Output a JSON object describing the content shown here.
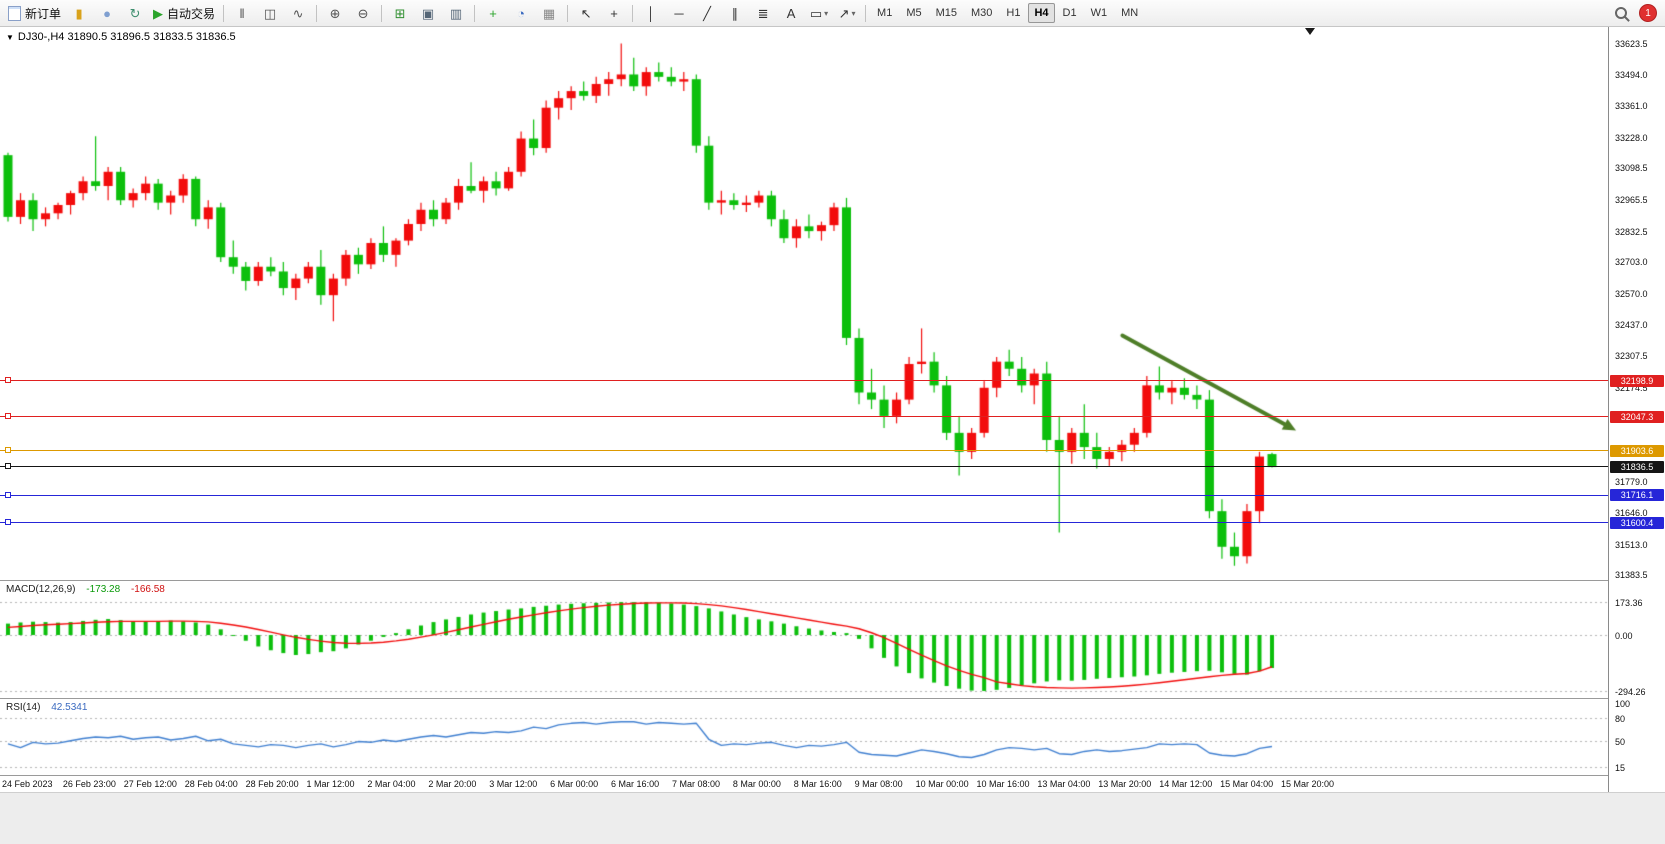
{
  "toolbar": {
    "new_order_label": "新订单",
    "algo_trading_label": "自动交易",
    "timeframes": [
      "M1",
      "M5",
      "M15",
      "M30",
      "H1",
      "H4",
      "D1",
      "W1",
      "MN"
    ],
    "active_timeframe": "H4",
    "notification_count": "1",
    "groups": [
      [
        {
          "name": "new-order-button",
          "css": "ic-doc",
          "label": "新订单"
        },
        {
          "name": "new-chart-icon",
          "glyph": "▮",
          "color": "#d9a21b"
        },
        {
          "name": "profiles-icon",
          "glyph": "●",
          "color": "#7f9fd0"
        },
        {
          "name": "refresh-icon",
          "glyph": "↻",
          "color": "#3f8f6f"
        },
        {
          "name": "algo-trading-button",
          "glyph": "▶",
          "color": "#2aa42a",
          "label": "自动交易"
        }
      ],
      [
        {
          "name": "bar-chart-icon",
          "glyph": "‖",
          "color": "#555555"
        },
        {
          "name": "candlestick-chart-icon",
          "glyph": "◫",
          "color": "#555555"
        },
        {
          "name": "line-chart-icon",
          "glyph": "∿",
          "color": "#555555"
        }
      ],
      [
        {
          "name": "zoom-in-icon",
          "glyph": "⊕",
          "color": "#555555"
        },
        {
          "name": "zoom-out-icon",
          "glyph": "⊖",
          "color": "#555555"
        }
      ],
      [
        {
          "name": "tile-windows-icon",
          "glyph": "⊞",
          "color": "#2f8f2f"
        },
        {
          "name": "new-window-icon",
          "glyph": "▣",
          "color": "#556677"
        },
        {
          "name": "window-list-icon",
          "glyph": "▥",
          "color": "#556677"
        }
      ],
      [
        {
          "name": "add-indicator-button",
          "glyph": "+",
          "color": "#2aa42a"
        },
        {
          "name": "periods-icon",
          "glyph": "◔",
          "color": "#3a6ac0"
        },
        {
          "name": "template-icon",
          "glyph": "▦",
          "color": "#888888"
        }
      ],
      [
        {
          "name": "cursor-icon",
          "glyph": "↖",
          "color": "#333333"
        },
        {
          "name": "crosshair-icon",
          "glyph": "+",
          "color": "#333333"
        }
      ],
      [
        {
          "name": "vertical-line-icon",
          "glyph": "│",
          "color": "#333333"
        },
        {
          "name": "horizontal-line-icon",
          "glyph": "─",
          "color": "#333333"
        },
        {
          "name": "trendline-icon",
          "glyph": "╱",
          "color": "#333333"
        },
        {
          "name": "channel-icon",
          "glyph": "∥",
          "color": "#333333"
        },
        {
          "name": "fibonacci-icon",
          "glyph": "≣",
          "color": "#333333"
        },
        {
          "name": "text-icon",
          "glyph": "A",
          "color": "#333333"
        },
        {
          "name": "shapes-icon",
          "glyph": "▭",
          "color": "#333333",
          "caret": true
        },
        {
          "name": "arrows-icon",
          "glyph": "↗",
          "color": "#333333",
          "caret": true
        }
      ]
    ]
  },
  "chart": {
    "title": "DJ30-,H4 31890.5 31896.5 31833.5 31836.5"
  },
  "indicators": {
    "macd_title": "MACD(12,26,9)",
    "macd_main": "-173.28",
    "macd_signal": "-166.58",
    "rsi_title": "RSI(14)",
    "rsi_value": "42.5341"
  },
  "chart_data": {
    "type": "candlestick",
    "symbol": "DJ30-",
    "timeframe": "H4",
    "ohlc": {
      "open": 31890.5,
      "high": 31896.5,
      "low": 31833.5,
      "close": 31836.5
    },
    "price_range": [
      31360,
      33690
    ],
    "colors": {
      "bull": "#f20c0c",
      "bear": "#0cbf0c"
    },
    "price_axis_labels": [
      "33623.5",
      "33494.0",
      "33361.0",
      "33228.0",
      "33098.5",
      "32965.5",
      "32832.5",
      "32703.0",
      "32570.0",
      "32437.0",
      "32307.5",
      "32174.5",
      "31779.0",
      "31646.0",
      "31513.0",
      "31383.5"
    ],
    "hlines": [
      {
        "price": 32198.9,
        "label": "32198.9",
        "color": "#e02020",
        "name": "resistance-line-1"
      },
      {
        "price": 32047.3,
        "label": "32047.3",
        "color": "#e02020",
        "name": "resistance-line-2"
      },
      {
        "price": 31903.6,
        "label": "31903.6",
        "color": "#dd9900",
        "name": "pivot-line"
      },
      {
        "price": 31716.1,
        "label": "31716.1",
        "color": "#2626d8",
        "name": "support-line-1"
      },
      {
        "price": 31600.4,
        "label": "31600.4",
        "color": "#2626d8",
        "name": "support-line-2"
      }
    ],
    "bid_line": {
      "price": 31836.5,
      "label": "31836.5",
      "color": "#151515"
    },
    "trend_arrow": {
      "x1_frac": 0.698,
      "price1": 32390,
      "x2_frac": 0.806,
      "price2": 31990,
      "color": "#4e7e28"
    },
    "time_labels": [
      "24 Feb 2023",
      "26 Feb 23:00",
      "27 Feb 12:00",
      "28 Feb 04:00",
      "28 Feb 20:00",
      "1 Mar 12:00",
      "2 Mar 04:00",
      "2 Mar 20:00",
      "3 Mar 12:00",
      "6 Mar 00:00",
      "6 Mar 16:00",
      "7 Mar 08:00",
      "8 Mar 00:00",
      "8 Mar 16:00",
      "9 Mar 08:00",
      "10 Mar 00:00",
      "10 Mar 16:00",
      "13 Mar 04:00",
      "13 Mar 20:00",
      "14 Mar 12:00",
      "15 Mar 04:00",
      "15 Mar 20:00"
    ],
    "candles": [
      [
        33150,
        33160,
        32870,
        32890
      ],
      [
        32890,
        32990,
        32860,
        32960
      ],
      [
        32960,
        32990,
        32830,
        32880
      ],
      [
        32880,
        32930,
        32850,
        32905
      ],
      [
        32905,
        32950,
        32880,
        32940
      ],
      [
        32940,
        33000,
        32900,
        32990
      ],
      [
        32990,
        33060,
        32960,
        33040
      ],
      [
        33040,
        33230,
        33000,
        33020
      ],
      [
        33020,
        33100,
        32960,
        33080
      ],
      [
        33080,
        33100,
        32940,
        32960
      ],
      [
        32960,
        33010,
        32930,
        32990
      ],
      [
        32990,
        33060,
        32960,
        33030
      ],
      [
        33030,
        33050,
        32920,
        32950
      ],
      [
        32950,
        33000,
        32900,
        32980
      ],
      [
        32980,
        33070,
        32950,
        33050
      ],
      [
        33050,
        33060,
        32850,
        32880
      ],
      [
        32880,
        32960,
        32840,
        32930
      ],
      [
        32930,
        32950,
        32700,
        32720
      ],
      [
        32720,
        32790,
        32650,
        32680
      ],
      [
        32680,
        32700,
        32580,
        32620
      ],
      [
        32620,
        32700,
        32600,
        32680
      ],
      [
        32680,
        32720,
        32640,
        32660
      ],
      [
        32660,
        32700,
        32560,
        32590
      ],
      [
        32590,
        32650,
        32540,
        32630
      ],
      [
        32630,
        32700,
        32610,
        32680
      ],
      [
        32680,
        32750,
        32520,
        32560
      ],
      [
        32560,
        32650,
        32450,
        32630
      ],
      [
        32630,
        32750,
        32600,
        32730
      ],
      [
        32730,
        32760,
        32650,
        32690
      ],
      [
        32690,
        32800,
        32670,
        32780
      ],
      [
        32780,
        32850,
        32700,
        32730
      ],
      [
        32730,
        32800,
        32680,
        32790
      ],
      [
        32790,
        32880,
        32770,
        32860
      ],
      [
        32860,
        32950,
        32830,
        32920
      ],
      [
        32920,
        32960,
        32850,
        32880
      ],
      [
        32880,
        32970,
        32860,
        32950
      ],
      [
        32950,
        33050,
        32920,
        33020
      ],
      [
        33020,
        33120,
        32990,
        33000
      ],
      [
        33000,
        33060,
        32950,
        33040
      ],
      [
        33040,
        33080,
        32980,
        33010
      ],
      [
        33010,
        33100,
        33000,
        33080
      ],
      [
        33080,
        33250,
        33060,
        33220
      ],
      [
        33220,
        33300,
        33150,
        33180
      ],
      [
        33180,
        33380,
        33160,
        33350
      ],
      [
        33350,
        33420,
        33300,
        33390
      ],
      [
        33390,
        33440,
        33340,
        33420
      ],
      [
        33420,
        33460,
        33380,
        33400
      ],
      [
        33400,
        33480,
        33370,
        33450
      ],
      [
        33450,
        33500,
        33400,
        33470
      ],
      [
        33470,
        33620,
        33440,
        33490
      ],
      [
        33490,
        33560,
        33420,
        33440
      ],
      [
        33440,
        33520,
        33400,
        33500
      ],
      [
        33500,
        33540,
        33460,
        33480
      ],
      [
        33480,
        33520,
        33440,
        33460
      ],
      [
        33460,
        33500,
        33420,
        33470
      ],
      [
        33470,
        33490,
        33160,
        33190
      ],
      [
        33190,
        33230,
        32920,
        32950
      ],
      [
        32950,
        33000,
        32900,
        32960
      ],
      [
        32960,
        32990,
        32920,
        32940
      ],
      [
        32940,
        32980,
        32910,
        32950
      ],
      [
        32950,
        33000,
        32930,
        32980
      ],
      [
        32980,
        33000,
        32850,
        32880
      ],
      [
        32880,
        32920,
        32780,
        32800
      ],
      [
        32800,
        32880,
        32760,
        32850
      ],
      [
        32850,
        32900,
        32800,
        32830
      ],
      [
        32830,
        32870,
        32790,
        32855
      ],
      [
        32855,
        32950,
        32830,
        32930
      ],
      [
        32930,
        32970,
        32350,
        32380
      ],
      [
        32380,
        32420,
        32100,
        32150
      ],
      [
        32150,
        32250,
        32080,
        32120
      ],
      [
        32120,
        32180,
        32000,
        32050
      ],
      [
        32050,
        32150,
        32020,
        32120
      ],
      [
        32120,
        32300,
        32100,
        32270
      ],
      [
        32270,
        32420,
        32230,
        32280
      ],
      [
        32280,
        32320,
        32150,
        32180
      ],
      [
        32180,
        32220,
        31950,
        31980
      ],
      [
        31980,
        32050,
        31800,
        31900
      ],
      [
        31900,
        32000,
        31870,
        31980
      ],
      [
        31980,
        32200,
        31960,
        32170
      ],
      [
        32170,
        32300,
        32130,
        32280
      ],
      [
        32280,
        32330,
        32220,
        32250
      ],
      [
        32250,
        32300,
        32150,
        32180
      ],
      [
        32180,
        32250,
        32100,
        32230
      ],
      [
        32230,
        32280,
        31900,
        31950
      ],
      [
        31950,
        32050,
        31560,
        31900
      ],
      [
        31900,
        32000,
        31850,
        31980
      ],
      [
        31980,
        32100,
        31870,
        31920
      ],
      [
        31920,
        31980,
        31830,
        31870
      ],
      [
        31870,
        31920,
        31840,
        31900
      ],
      [
        31900,
        31950,
        31860,
        31930
      ],
      [
        31930,
        32000,
        31900,
        31980
      ],
      [
        31980,
        32220,
        31960,
        32180
      ],
      [
        32180,
        32260,
        32120,
        32150
      ],
      [
        32150,
        32200,
        32100,
        32170
      ],
      [
        32170,
        32210,
        32120,
        32140
      ],
      [
        32140,
        32180,
        32080,
        32120
      ],
      [
        32120,
        32160,
        31620,
        31650
      ],
      [
        31650,
        31700,
        31450,
        31500
      ],
      [
        31500,
        31560,
        31420,
        31460
      ],
      [
        31460,
        31680,
        31430,
        31650
      ],
      [
        31650,
        31900,
        31600,
        31880
      ],
      [
        31890.5,
        31896.5,
        31833.5,
        31836.5
      ]
    ],
    "macd": {
      "range": [
        -331,
        284
      ],
      "axis_values": [
        173.36,
        0,
        -294.26
      ],
      "axis_labels": [
        "173.36",
        "0.00",
        "-294.26"
      ],
      "hist_color": "#0cbf0c",
      "signal_color": "#f20c0c",
      "histogram": [
        60,
        66,
        70,
        68,
        65,
        68,
        74,
        80,
        84,
        78,
        72,
        70,
        74,
        76,
        72,
        66,
        55,
        30,
        0,
        -30,
        -60,
        -80,
        -95,
        -105,
        -100,
        -90,
        -85,
        -70,
        -50,
        -30,
        -10,
        10,
        30,
        50,
        68,
        82,
        95,
        108,
        118,
        126,
        134,
        140,
        148,
        154,
        160,
        164,
        167,
        169,
        171,
        173,
        173,
        172,
        170,
        166,
        160,
        152,
        140,
        124,
        108,
        94,
        82,
        72,
        60,
        46,
        34,
        24,
        16,
        10,
        -20,
        -70,
        -120,
        -165,
        -200,
        -228,
        -250,
        -268,
        -282,
        -292,
        -294,
        -288,
        -278,
        -266,
        -254,
        -244,
        -238,
        -240,
        -236,
        -230,
        -226,
        -222,
        -218,
        -212,
        -204,
        -198,
        -194,
        -190,
        -188,
        -196,
        -204,
        -208,
        -190,
        -173.28
      ],
      "signal": [
        40,
        45,
        50,
        54,
        57,
        60,
        63,
        67,
        70,
        72,
        72,
        72,
        72,
        73,
        73,
        72,
        69,
        62,
        53,
        42,
        29,
        15,
        1,
        -12,
        -23,
        -32,
        -39,
        -43,
        -44,
        -42,
        -38,
        -31,
        -22,
        -11,
        1,
        14,
        28,
        42,
        56,
        70,
        83,
        95,
        106,
        117,
        127,
        136,
        144,
        151,
        157,
        162,
        166,
        168,
        169,
        169,
        168,
        165,
        160,
        153,
        144,
        134,
        123,
        112,
        101,
        90,
        79,
        68,
        57,
        47,
        33,
        12,
        -14,
        -44,
        -75,
        -106,
        -135,
        -162,
        -186,
        -207,
        -224,
        -246,
        -256,
        -266,
        -272,
        -276,
        -278,
        -279,
        -278,
        -276,
        -273,
        -269,
        -264,
        -258,
        -251,
        -243,
        -235,
        -227,
        -219,
        -212,
        -206,
        -202,
        -190,
        -166.58
      ]
    },
    "rsi": {
      "range": [
        5,
        105
      ],
      "axis_values": [
        100,
        80,
        50,
        15
      ],
      "axis_labels": [
        "100",
        "80",
        "50",
        "15"
      ],
      "levels": [
        80,
        50,
        15
      ],
      "line_color": "#3f7fd0",
      "values": [
        46,
        41,
        48,
        46,
        47,
        50,
        53,
        55,
        54,
        56,
        52,
        54,
        55,
        51,
        53,
        56,
        50,
        52,
        46,
        44,
        42,
        45,
        44,
        41,
        44,
        46,
        42,
        45,
        49,
        48,
        51,
        49,
        52,
        55,
        57,
        55,
        58,
        61,
        60,
        62,
        61,
        63,
        68,
        66,
        71,
        73,
        74,
        72,
        74,
        75,
        75,
        72,
        74,
        73,
        72,
        73,
        52,
        44,
        46,
        45,
        47,
        48,
        44,
        41,
        44,
        43,
        45,
        48,
        35,
        32,
        31,
        30,
        34,
        38,
        36,
        33,
        29,
        28,
        32,
        38,
        41,
        40,
        38,
        40,
        33,
        32,
        36,
        38,
        36,
        37,
        39,
        41,
        46,
        45,
        46,
        45,
        34,
        31,
        30,
        33,
        40,
        42.5341
      ]
    }
  }
}
